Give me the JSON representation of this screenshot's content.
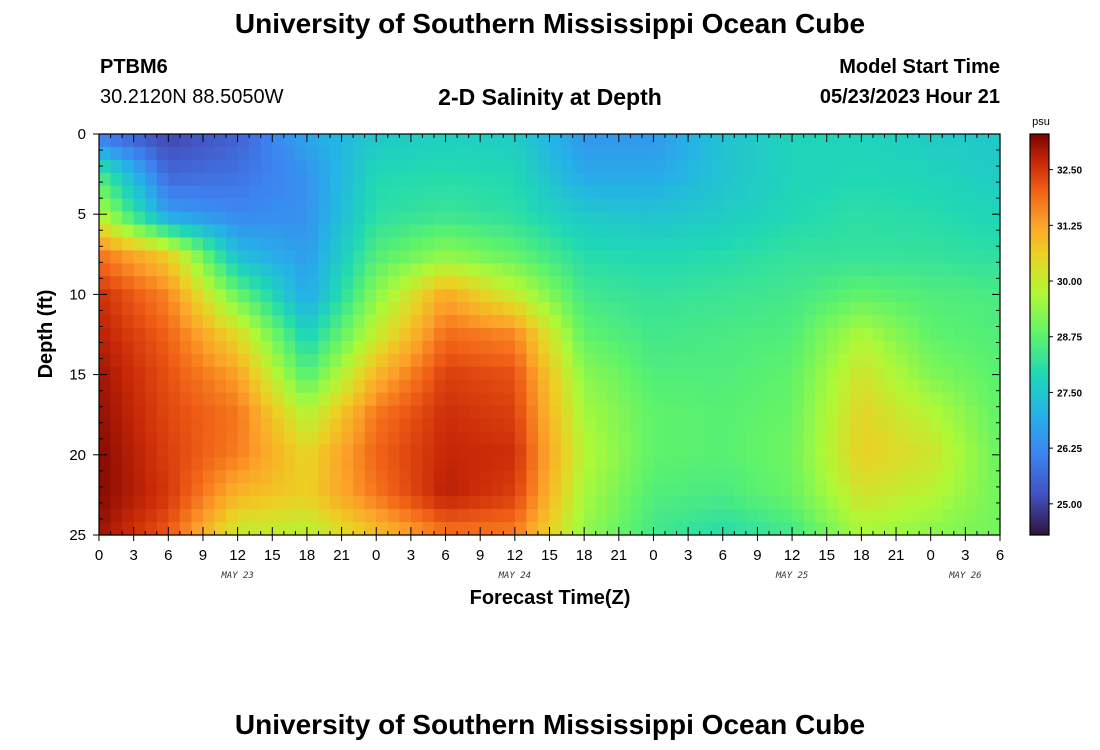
{
  "header": {
    "title": "University of Southern Mississippi Ocean Cube",
    "station": "PTBM6",
    "coords": "30.2120N  88.5050W",
    "subtitle": "2-D Salinity at Depth",
    "model_start_label": "Model Start Time",
    "model_start_value": "05/23/2023 Hour 21"
  },
  "footer": {
    "title": "University of Southern Mississippi Ocean Cube"
  },
  "colorbar": {
    "unit": "psu",
    "ticks": [
      "32.50",
      "31.25",
      "30.00",
      "28.75",
      "27.50",
      "26.25",
      "25.00"
    ]
  },
  "chart_data": {
    "type": "heatmap",
    "title": "2-D Salinity at Depth",
    "xlabel": "Forecast Time(Z)",
    "ylabel": "Depth (ft)",
    "x_tick_labels": [
      "0",
      "3",
      "6",
      "9",
      "12",
      "15",
      "18",
      "21",
      "0",
      "3",
      "6",
      "9",
      "12",
      "15",
      "18",
      "21",
      "0",
      "3",
      "6",
      "9",
      "12",
      "15",
      "18",
      "21",
      "0",
      "3",
      "6"
    ],
    "day_labels": [
      {
        "label": "MAY 23",
        "at_hour": 12
      },
      {
        "label": "MAY 24",
        "at_hour": 36
      },
      {
        "label": "MAY 25",
        "at_hour": 60
      },
      {
        "label": "MAY 26",
        "at_hour": 75
      }
    ],
    "y_tick_labels": [
      "0",
      "5",
      "10",
      "15",
      "20",
      "25"
    ],
    "xlim_hours": [
      0,
      78
    ],
    "ylim_ft": [
      0,
      25
    ],
    "colorscale_range_psu": [
      24.3,
      33.3
    ],
    "colormap": "turbo",
    "salinity_psu": {
      "hours": [
        0,
        6,
        12,
        18,
        24,
        30,
        36,
        42,
        48,
        54,
        60,
        66,
        72,
        78
      ],
      "depths_ft": [
        0,
        2.5,
        5,
        7.5,
        10,
        12.5,
        15,
        17.5,
        20,
        22.5,
        25
      ],
      "values": [
        [
          25.8,
          25.0,
          25.5,
          26.8,
          27.5,
          27.7,
          27.6,
          26.5,
          26.5,
          27.4,
          27.8,
          27.8,
          27.6,
          27.5
        ],
        [
          28.5,
          25.6,
          25.8,
          26.4,
          27.9,
          28.0,
          27.9,
          26.8,
          26.8,
          27.4,
          27.8,
          27.9,
          27.8,
          27.6
        ],
        [
          29.8,
          26.6,
          26.2,
          26.4,
          28.1,
          28.3,
          28.1,
          27.5,
          27.4,
          27.6,
          27.9,
          28.1,
          28.0,
          27.8
        ],
        [
          31.8,
          30.6,
          27.2,
          26.6,
          28.6,
          29.3,
          28.8,
          28.0,
          27.9,
          28.0,
          28.2,
          28.2,
          28.2,
          28.1
        ],
        [
          32.6,
          31.6,
          28.9,
          26.8,
          29.3,
          31.2,
          30.0,
          28.4,
          28.2,
          28.3,
          28.4,
          28.8,
          28.6,
          28.5
        ],
        [
          32.8,
          32.0,
          30.4,
          27.7,
          30.0,
          31.9,
          31.6,
          28.8,
          28.4,
          28.5,
          28.6,
          29.7,
          28.8,
          28.6
        ],
        [
          33.0,
          32.2,
          31.3,
          28.6,
          31.0,
          32.4,
          32.2,
          29.3,
          28.6,
          28.6,
          28.8,
          30.2,
          29.2,
          28.7
        ],
        [
          33.1,
          32.3,
          31.8,
          29.8,
          31.8,
          32.6,
          32.4,
          29.6,
          28.8,
          28.7,
          28.9,
          30.5,
          29.8,
          28.8
        ],
        [
          33.2,
          32.4,
          31.7,
          30.5,
          32.0,
          32.7,
          32.6,
          29.8,
          28.8,
          28.7,
          29.0,
          30.6,
          30.2,
          28.9
        ],
        [
          33.2,
          32.5,
          31.0,
          30.6,
          31.8,
          32.8,
          32.4,
          29.6,
          28.6,
          28.5,
          28.9,
          30.2,
          29.8,
          29.0
        ],
        [
          33.0,
          32.1,
          30.0,
          29.8,
          30.8,
          31.8,
          31.7,
          29.4,
          28.4,
          28.0,
          28.4,
          29.6,
          29.3,
          29.0
        ]
      ]
    }
  }
}
